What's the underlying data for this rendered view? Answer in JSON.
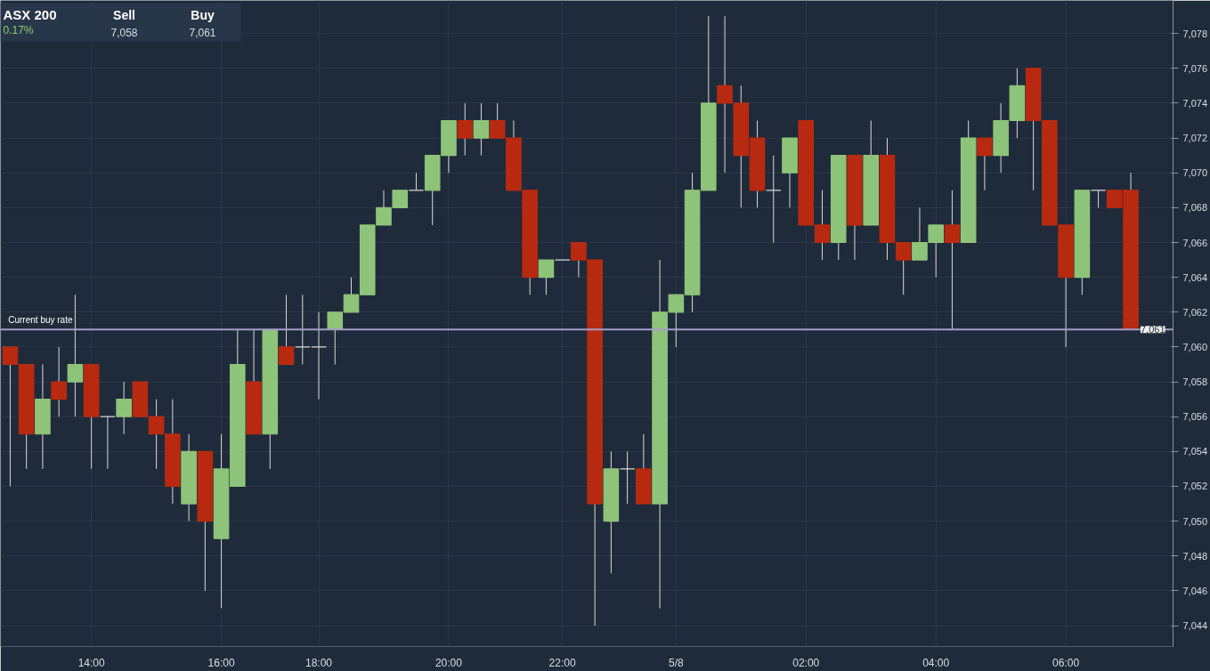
{
  "chart_data": {
    "type": "candlestick",
    "title": "ASX 200",
    "subtitle": "0.17%",
    "categories": [
      null,
      null,
      null,
      null,
      null,
      "14:00",
      null,
      null,
      null,
      null,
      null,
      null,
      null,
      "16:00",
      null,
      null,
      null,
      null,
      null,
      "18:00",
      null,
      null,
      null,
      null,
      null,
      null,
      null,
      "20:00",
      null,
      null,
      null,
      null,
      null,
      null,
      "22:00",
      null,
      null,
      null,
      null,
      null,
      null,
      "5/8",
      null,
      null,
      null,
      null,
      null,
      null,
      null,
      "02:00",
      null,
      null,
      null,
      null,
      null,
      null,
      null,
      "04:00",
      null,
      null,
      null,
      null,
      null,
      null,
      null,
      "06:00",
      null,
      null,
      null,
      null
    ],
    "ohlc": [
      [
        7060,
        7060,
        7052,
        7059
      ],
      [
        7059,
        7059,
        7053,
        7055
      ],
      [
        7055,
        7059,
        7053,
        7057
      ],
      [
        7058,
        7060,
        7056,
        7057
      ],
      [
        7058,
        7063,
        7056,
        7059
      ],
      [
        7059,
        7059,
        7053,
        7056
      ],
      [
        7056,
        7056,
        7053,
        7056
      ],
      [
        7056,
        7058,
        7055,
        7057
      ],
      [
        7058,
        7058,
        7056,
        7056
      ],
      [
        7056,
        7057,
        7053,
        7055
      ],
      [
        7055,
        7057,
        7051,
        7052
      ],
      [
        7051,
        7055,
        7050,
        7054
      ],
      [
        7054,
        7054,
        7046,
        7050
      ],
      [
        7049,
        7055,
        7045,
        7053
      ],
      [
        7052,
        7061,
        7052,
        7059
      ],
      [
        7058,
        7061,
        7055,
        7055
      ],
      [
        7055,
        7061,
        7053,
        7061
      ],
      [
        7060,
        7063,
        7059,
        7059
      ],
      [
        7060,
        7063,
        7059,
        7060
      ],
      [
        7060,
        7062,
        7057,
        7060
      ],
      [
        7061,
        7062,
        7059,
        7062
      ],
      [
        7062,
        7064,
        7062,
        7063
      ],
      [
        7063,
        7067,
        7063,
        7067
      ],
      [
        7067,
        7069,
        7067,
        7068
      ],
      [
        7068,
        7069,
        7068,
        7069
      ],
      [
        7069,
        7070,
        7069,
        7069
      ],
      [
        7069,
        7071,
        7067,
        7071
      ],
      [
        7071,
        7073,
        7070,
        7073
      ],
      [
        7073,
        7074,
        7071,
        7072
      ],
      [
        7072,
        7074,
        7071,
        7073
      ],
      [
        7073,
        7074,
        7072,
        7072
      ],
      [
        7072,
        7073,
        7069,
        7069
      ],
      [
        7069,
        7069,
        7063,
        7064
      ],
      [
        7064,
        7065,
        7063,
        7065
      ],
      [
        7065,
        7065,
        7065,
        7065
      ],
      [
        7066,
        7066,
        7064,
        7065
      ],
      [
        7065,
        7065,
        7044,
        7051
      ],
      [
        7050,
        7054,
        7047,
        7053
      ],
      [
        7053,
        7054,
        7051,
        7053
      ],
      [
        7053,
        7055,
        7051,
        7051
      ],
      [
        7051,
        7065,
        7045,
        7062
      ],
      [
        7062,
        7063,
        7060,
        7063
      ],
      [
        7063,
        7070,
        7062,
        7069
      ],
      [
        7069,
        7079,
        7069,
        7074
      ],
      [
        7075,
        7079,
        7070,
        7074
      ],
      [
        7074,
        7075,
        7068,
        7071
      ],
      [
        7072,
        7073,
        7068,
        7069
      ],
      [
        7069,
        7071,
        7066,
        7069
      ],
      [
        7070,
        7072,
        7068,
        7072
      ],
      [
        7073,
        7073,
        7067,
        7067
      ],
      [
        7067,
        7069,
        7065,
        7066
      ],
      [
        7066,
        7071,
        7065,
        7071
      ],
      [
        7071,
        7071,
        7065,
        7067
      ],
      [
        7067,
        7073,
        7067,
        7071
      ],
      [
        7071,
        7072,
        7065,
        7066
      ],
      [
        7066,
        7066,
        7063,
        7065
      ],
      [
        7065,
        7068,
        7065,
        7066
      ],
      [
        7066,
        7067,
        7064,
        7067
      ],
      [
        7067,
        7069,
        7061,
        7066
      ],
      [
        7066,
        7073,
        7066,
        7072
      ],
      [
        7072,
        7072,
        7069,
        7071
      ],
      [
        7071,
        7074,
        7070,
        7073
      ],
      [
        7073,
        7076,
        7072,
        7075
      ],
      [
        7076,
        7076,
        7069,
        7073
      ],
      [
        7073,
        7073,
        7067,
        7067
      ],
      [
        7067,
        7067,
        7060,
        7064
      ],
      [
        7064,
        7069,
        7063,
        7069
      ],
      [
        7069,
        7069,
        7068,
        7069
      ],
      [
        7069,
        7069,
        7068,
        7068
      ],
      [
        7069,
        7070,
        7061,
        7061
      ]
    ],
    "colors": [
      "#b82a10",
      "#b82a10",
      "#8ec47a",
      "#b82a10",
      "#8ec47a",
      "#b82a10",
      "#d9d9d9",
      "#8ec47a",
      "#b82a10",
      "#b82a10",
      "#b82a10",
      "#8ec47a",
      "#b82a10",
      "#8ec47a",
      "#8ec47a",
      "#b82a10",
      "#8ec47a",
      "#b82a10",
      "#d9d9d9",
      "#d9d9d9",
      "#8ec47a",
      "#8ec47a",
      "#8ec47a",
      "#8ec47a",
      "#8ec47a",
      "#d9d9d9",
      "#8ec47a",
      "#8ec47a",
      "#b82a10",
      "#8ec47a",
      "#b82a10",
      "#b82a10",
      "#b82a10",
      "#8ec47a",
      "#d9d9d9",
      "#b82a10",
      "#b82a10",
      "#8ec47a",
      "#d9d9d9",
      "#b82a10",
      "#8ec47a",
      "#8ec47a",
      "#8ec47a",
      "#8ec47a",
      "#b82a10",
      "#b82a10",
      "#b82a10",
      "#d9d9d9",
      "#8ec47a",
      "#b82a10",
      "#b82a10",
      "#8ec47a",
      "#b82a10",
      "#8ec47a",
      "#b82a10",
      "#b82a10",
      "#8ec47a",
      "#8ec47a",
      "#b82a10",
      "#8ec47a",
      "#b82a10",
      "#8ec47a",
      "#8ec47a",
      "#b82a10",
      "#b82a10",
      "#b82a10",
      "#8ec47a",
      "#d9d9d9",
      "#b82a10",
      "#b82a10"
    ],
    "ylim": [
      7042.8,
      7079.9
    ],
    "yticks": [
      {
        "value": 7044,
        "label": "7,044"
      },
      {
        "value": 7046,
        "label": "7,046"
      },
      {
        "value": 7048,
        "label": "7,048"
      },
      {
        "value": 7050,
        "label": "7,050"
      },
      {
        "value": 7052,
        "label": "7,052"
      },
      {
        "value": 7054,
        "label": "7,054"
      },
      {
        "value": 7056,
        "label": "7,056"
      },
      {
        "value": 7058,
        "label": "7,058"
      },
      {
        "value": 7060,
        "label": "7,060"
      },
      {
        "value": 7062,
        "label": "7,062"
      },
      {
        "value": 7064,
        "label": "7,064"
      },
      {
        "value": 7066,
        "label": "7,066"
      },
      {
        "value": 7068,
        "label": "7,068"
      },
      {
        "value": 7070,
        "label": "7,070"
      },
      {
        "value": 7072,
        "label": "7,072"
      },
      {
        "value": 7074,
        "label": "7,074"
      },
      {
        "value": 7076,
        "label": "7,076"
      },
      {
        "value": 7078,
        "label": "7,078"
      }
    ],
    "ref_lines": [
      {
        "axis": "y",
        "value": 7061,
        "label": "Current buy rate",
        "color": "#a59cc9"
      }
    ],
    "annotations": [
      "Sell",
      "7,058",
      "Buy",
      "7,061",
      {
        "text": "7,061",
        "y": 7061
      }
    ],
    "grid": true
  }
}
